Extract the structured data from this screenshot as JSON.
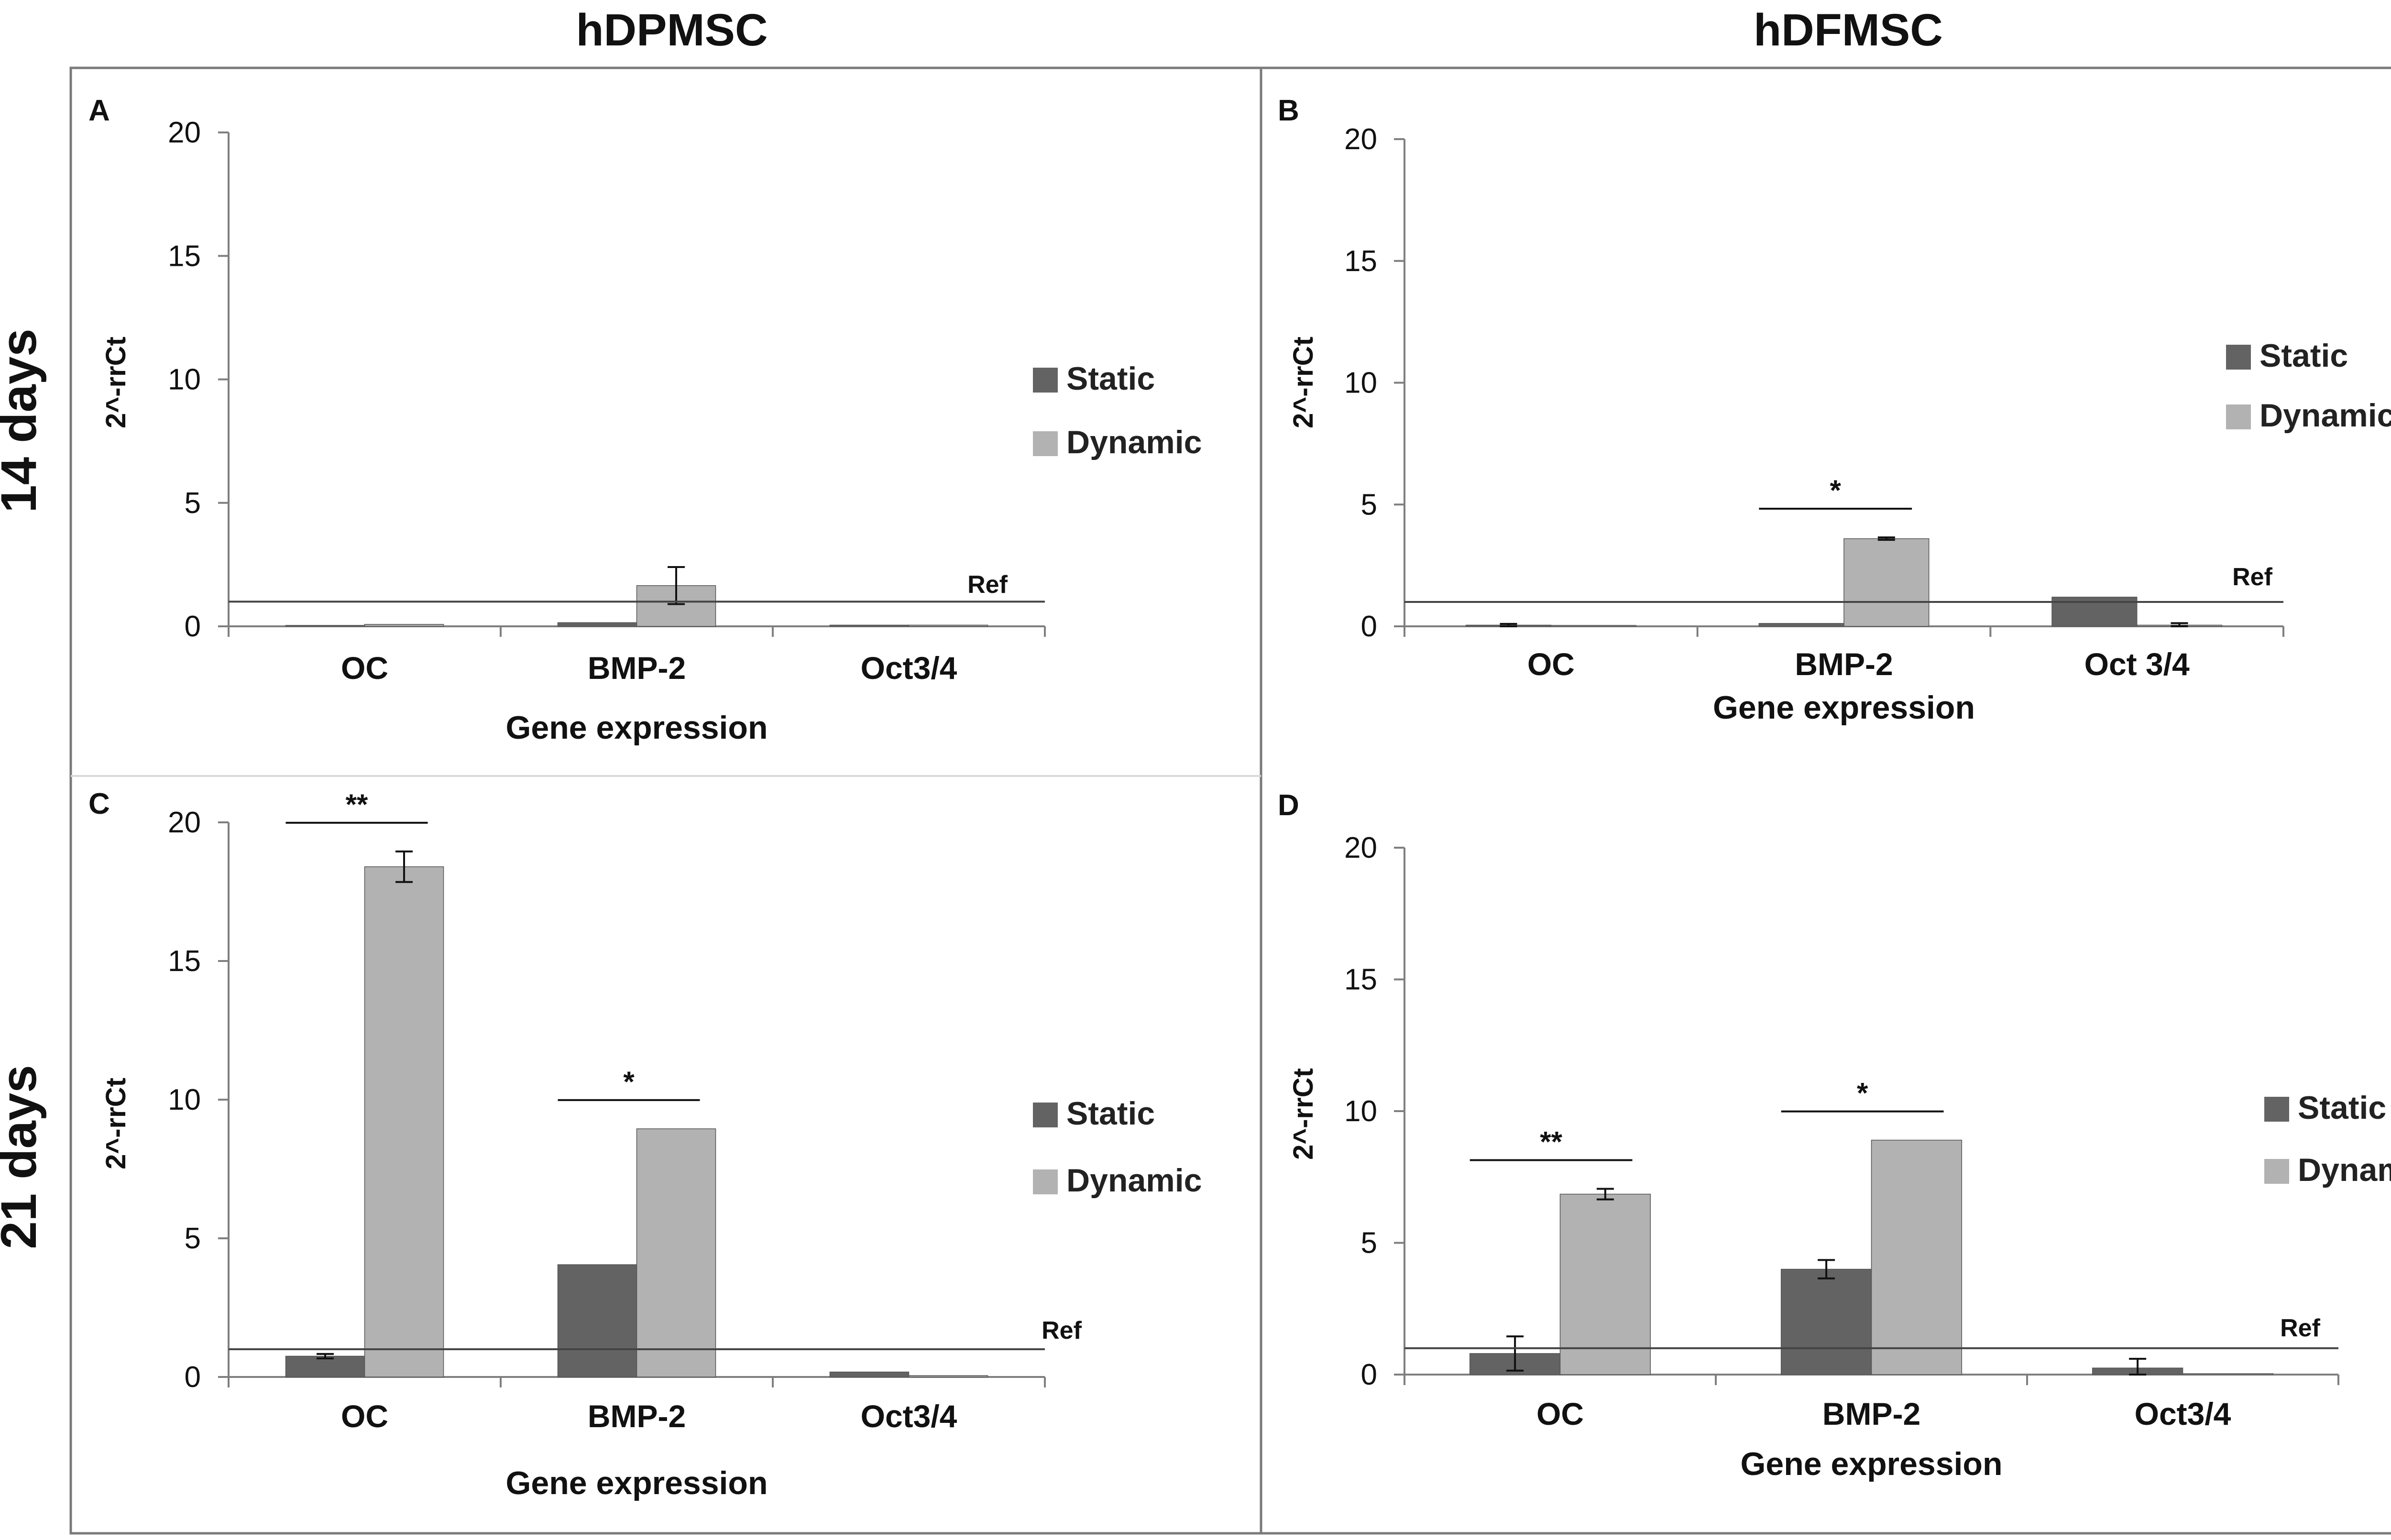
{
  "figure": {
    "column_headers": [
      "hDPMSC",
      "hDFMSC"
    ],
    "row_headers": [
      "14 days",
      "21 days"
    ]
  },
  "colors": {
    "static": "#636363",
    "dynamic": "#b2b2b2",
    "axis": "#7f7f7f",
    "ref_line": "#444444",
    "border": "#7a7a7a"
  },
  "chart_data": [
    {
      "panel": "A",
      "type": "bar",
      "xlabel": "Gene expression",
      "ylabel": "2^-rrCt",
      "ylim": [
        0,
        20
      ],
      "yticks": [
        0,
        5,
        10,
        15,
        20
      ],
      "categories": [
        "OC",
        "BMP-2",
        "Oct3/4"
      ],
      "series": [
        {
          "name": "Static",
          "values": [
            0.0,
            0.15,
            0.05
          ],
          "errors": [
            0.0,
            0.0,
            0.0
          ]
        },
        {
          "name": "Dynamic",
          "values": [
            0.08,
            1.65,
            0.05
          ],
          "errors": [
            0.0,
            0.75,
            0.0
          ]
        }
      ],
      "reference_label": "Ref",
      "reference_value": 1,
      "legend_position": "right",
      "significance": []
    },
    {
      "panel": "B",
      "type": "bar",
      "xlabel": "Gene expression",
      "ylabel": "2^-rrCt",
      "ylim": [
        0,
        20
      ],
      "yticks": [
        0,
        5,
        10,
        15,
        20
      ],
      "categories": [
        "OC",
        "BMP-2",
        "Oct 3/4"
      ],
      "series": [
        {
          "name": "Static",
          "values": [
            0.05,
            0.12,
            1.2
          ],
          "errors": [
            0.05,
            0.0,
            0.0
          ]
        },
        {
          "name": "Dynamic",
          "values": [
            0.03,
            3.6,
            0.05
          ],
          "errors": [
            0.0,
            0.05,
            0.08
          ]
        }
      ],
      "reference_label": "Ref",
      "reference_value": 1,
      "legend_position": "right",
      "significance": [
        {
          "category": 1,
          "label": "*"
        }
      ]
    },
    {
      "panel": "C",
      "type": "bar",
      "xlabel": "Gene expression",
      "ylabel": "2^-rrCt",
      "ylim": [
        0,
        20
      ],
      "yticks": [
        0,
        5,
        10,
        15,
        20
      ],
      "categories": [
        "OC",
        "BMP-2",
        "Oct3/4"
      ],
      "series": [
        {
          "name": "Static",
          "values": [
            0.75,
            4.05,
            0.18
          ],
          "errors": [
            0.08,
            0.0,
            0.0
          ]
        },
        {
          "name": "Dynamic",
          "values": [
            18.4,
            8.95,
            0.05
          ],
          "errors": [
            0.55,
            0.0,
            0.0
          ]
        }
      ],
      "reference_label": "Ref",
      "reference_value": 1,
      "legend_position": "right",
      "significance": [
        {
          "category": 0,
          "label": "**"
        },
        {
          "category": 1,
          "label": "*"
        }
      ]
    },
    {
      "panel": "D",
      "type": "bar",
      "xlabel": "Gene expression",
      "ylabel": "2^-rrCt",
      "ylim": [
        0,
        20
      ],
      "yticks": [
        0,
        5,
        10,
        15,
        20
      ],
      "categories": [
        "OC",
        "BMP-2",
        "Oct3/4"
      ],
      "series": [
        {
          "name": "Static",
          "values": [
            0.8,
            4.0,
            0.25
          ],
          "errors": [
            0.65,
            0.35,
            0.35
          ]
        },
        {
          "name": "Dynamic",
          "values": [
            6.85,
            8.9,
            0.03
          ],
          "errors": [
            0.2,
            0.0,
            0.0
          ]
        }
      ],
      "reference_label": "Ref",
      "reference_value": 1,
      "legend_position": "right",
      "significance": [
        {
          "category": 0,
          "label": "**"
        },
        {
          "category": 1,
          "label": "*"
        }
      ]
    }
  ]
}
